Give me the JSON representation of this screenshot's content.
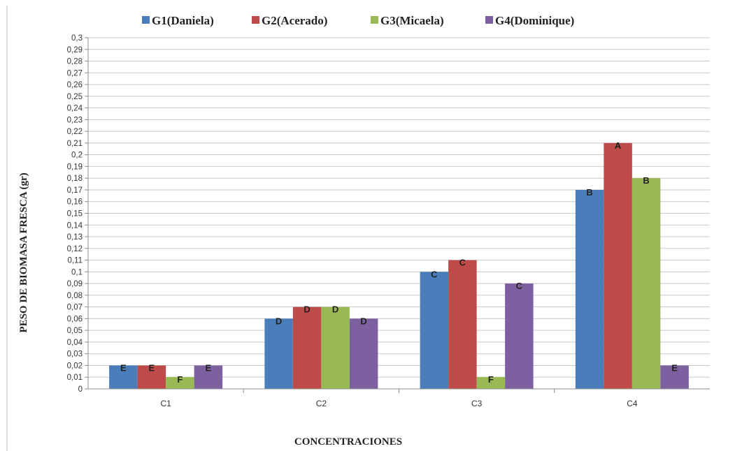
{
  "chart_data": {
    "type": "bar",
    "title": "",
    "xlabel": "CONCENTRACIONES",
    "ylabel": "PESO DE BIOMASA FRESCA (gr)",
    "ylim": [
      0,
      0.3
    ],
    "ytick_step": 0.01,
    "grid": true,
    "legend_position": "top",
    "categories": [
      "C1",
      "C2",
      "C3",
      "C4"
    ],
    "series": [
      {
        "name": "G1(Daniela)",
        "color": "#4a7ebb",
        "values": [
          0.02,
          0.06,
          0.1,
          0.17
        ],
        "labels": [
          "E",
          "D",
          "C",
          "B"
        ]
      },
      {
        "name": "G2(Acerado)",
        "color": "#be4b48",
        "values": [
          0.02,
          0.07,
          0.11,
          0.21
        ],
        "labels": [
          "E",
          "D",
          "C",
          "A"
        ]
      },
      {
        "name": "G3(Micaela)",
        "color": "#98b954",
        "values": [
          0.01,
          0.07,
          0.01,
          0.18
        ],
        "labels": [
          "F",
          "D",
          "F",
          "B"
        ]
      },
      {
        "name": "G4(Dominique)",
        "color": "#7d60a0",
        "values": [
          0.02,
          0.06,
          0.09,
          0.02
        ],
        "labels": [
          "E",
          "D",
          "C",
          "E"
        ]
      }
    ]
  }
}
